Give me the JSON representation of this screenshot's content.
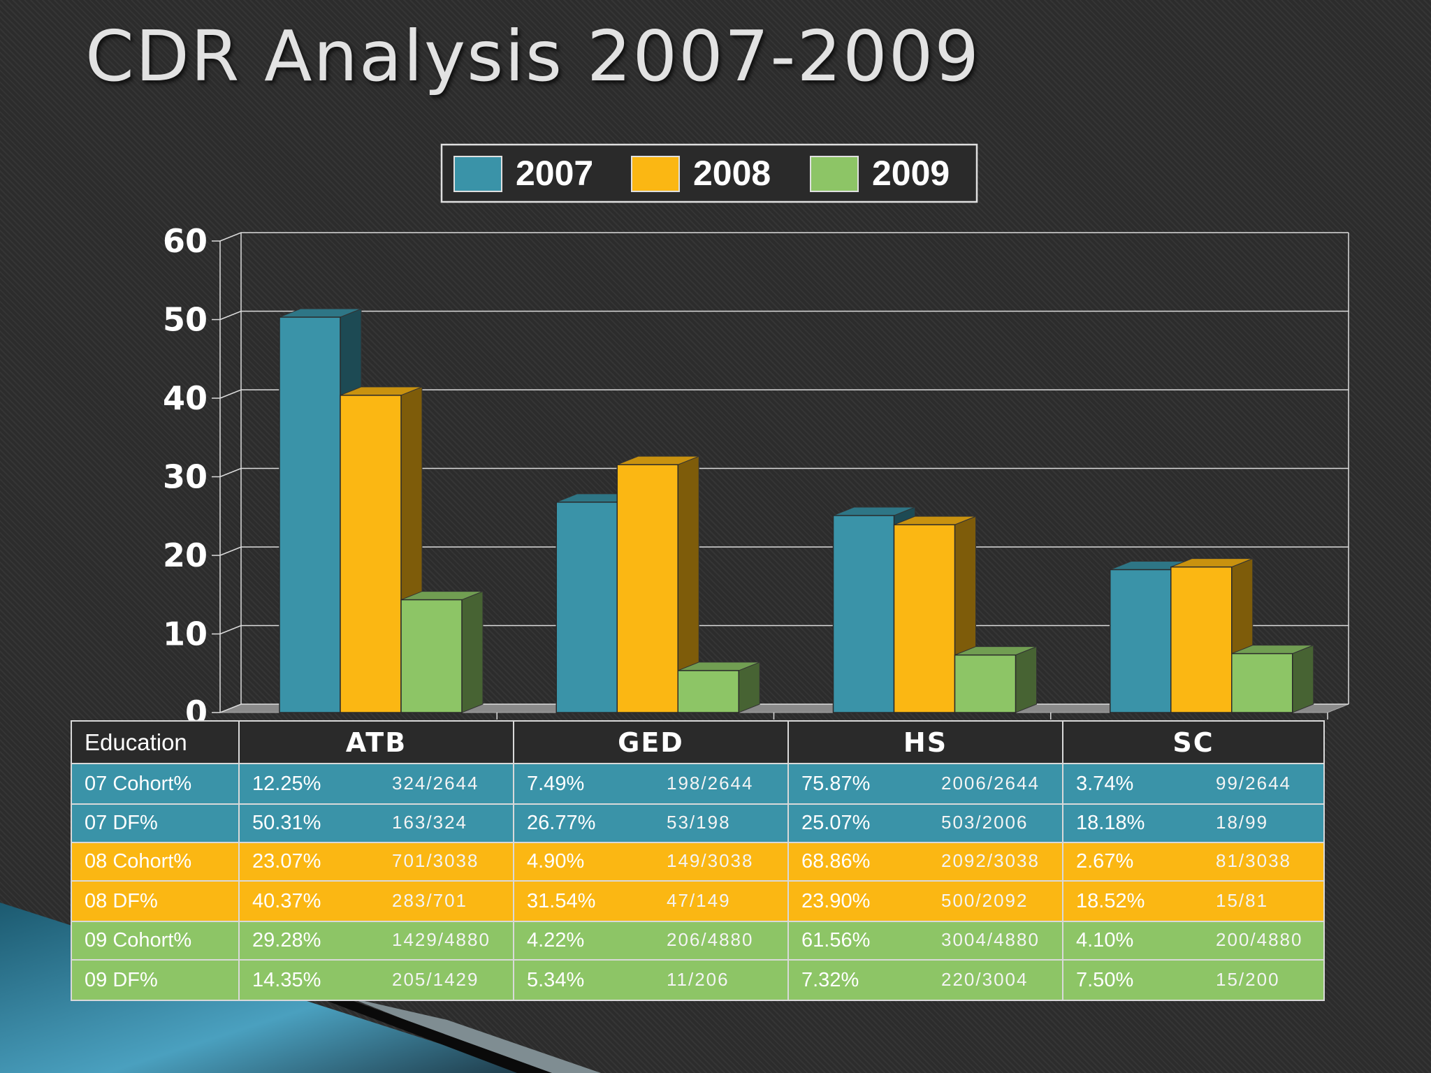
{
  "title": "CDR Analysis 2007-2009",
  "colors": {
    "2007": "#3a93a8",
    "2008": "#fbb713",
    "2009": "#8dc566"
  },
  "chart_data": {
    "type": "bar",
    "categories": [
      "ATB",
      "GED",
      "HS",
      "SC"
    ],
    "series": [
      {
        "name": "2007",
        "values": [
          50.31,
          26.77,
          25.07,
          18.18
        ]
      },
      {
        "name": "2008",
        "values": [
          40.37,
          31.54,
          23.9,
          18.52
        ]
      },
      {
        "name": "2009",
        "values": [
          14.35,
          5.34,
          7.32,
          7.5
        ]
      }
    ],
    "ylim": [
      0,
      60
    ],
    "yticks": [
      0,
      10,
      20,
      30,
      40,
      50,
      60
    ],
    "grid": true,
    "legend_position": "top"
  },
  "table": {
    "corner": "Education",
    "columns": [
      "ATB",
      "GED",
      "HS",
      "SC"
    ],
    "rows": [
      {
        "label": "07 Cohort%",
        "cells": [
          {
            "pct": "12.25%",
            "frac": "324/2644"
          },
          {
            "pct": "7.49%",
            "frac": "198/2644"
          },
          {
            "pct": "75.87%",
            "frac": "2006/2644"
          },
          {
            "pct": "3.74%",
            "frac": "99/2644"
          }
        ]
      },
      {
        "label": "07 DF%",
        "cells": [
          {
            "pct": "50.31%",
            "frac": "163/324"
          },
          {
            "pct": "26.77%",
            "frac": "53/198"
          },
          {
            "pct": "25.07%",
            "frac": "503/2006"
          },
          {
            "pct": "18.18%",
            "frac": "18/99"
          }
        ]
      },
      {
        "label": "08 Cohort%",
        "cells": [
          {
            "pct": "23.07%",
            "frac": "701/3038"
          },
          {
            "pct": "4.90%",
            "frac": "149/3038"
          },
          {
            "pct": "68.86%",
            "frac": "2092/3038"
          },
          {
            "pct": "2.67%",
            "frac": "81/3038"
          }
        ]
      },
      {
        "label": "08 DF%",
        "cells": [
          {
            "pct": "40.37%",
            "frac": "283/701"
          },
          {
            "pct": "31.54%",
            "frac": "47/149"
          },
          {
            "pct": "23.90%",
            "frac": "500/2092"
          },
          {
            "pct": "18.52%",
            "frac": "15/81"
          }
        ]
      },
      {
        "label": "09 Cohort%",
        "cells": [
          {
            "pct": "29.28%",
            "frac": "1429/4880"
          },
          {
            "pct": "4.22%",
            "frac": "206/4880"
          },
          {
            "pct": "61.56%",
            "frac": "3004/4880"
          },
          {
            "pct": "4.10%",
            "frac": "200/4880"
          }
        ]
      },
      {
        "label": "09 DF%",
        "cells": [
          {
            "pct": "14.35%",
            "frac": "205/1429"
          },
          {
            "pct": "5.34%",
            "frac": "11/206"
          },
          {
            "pct": "7.32%",
            "frac": "220/3004"
          },
          {
            "pct": "7.50%",
            "frac": "15/200"
          }
        ]
      }
    ]
  }
}
